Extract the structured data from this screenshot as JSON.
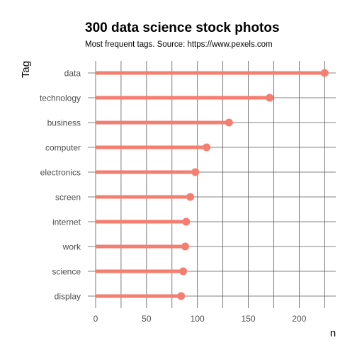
{
  "chart_data": {
    "type": "lollipop",
    "orientation": "horizontal",
    "title": "300 data science stock photos",
    "subtitle": "Most frequent tags. Source: https://www.pexels.com",
    "xlabel": "n",
    "ylabel": "Tag",
    "categories": [
      "data",
      "technology",
      "business",
      "computer",
      "electronics",
      "screen",
      "internet",
      "work",
      "science",
      "display"
    ],
    "values": [
      225,
      171,
      131,
      109,
      98,
      93,
      89,
      88,
      86,
      84
    ],
    "xlim": [
      -8,
      235
    ],
    "xticks": [
      "0",
      "50",
      "100",
      "150",
      "200"
    ],
    "grid": true,
    "color": "#f47f70"
  }
}
